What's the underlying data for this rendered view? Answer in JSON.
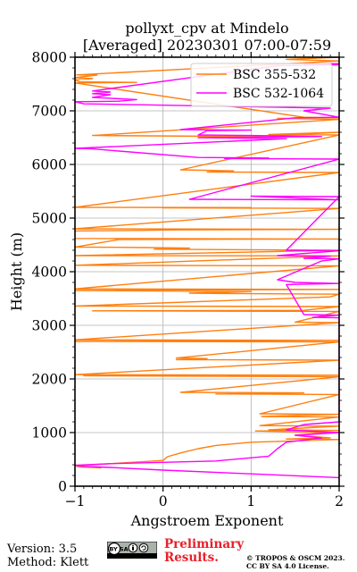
{
  "chart_data": {
    "type": "line",
    "title_line1": "pollyxt_cpv at Mindelo",
    "title_line2": "[Averaged] 20230301 07:00-07:59",
    "xlabel": "Angstroem Exponent",
    "ylabel": "Height (m)",
    "xlim": [
      -1,
      2
    ],
    "ylim": [
      0,
      8000
    ],
    "x_ticks": [
      -1,
      0,
      1,
      2
    ],
    "x_tick_labels": [
      "−1",
      "0",
      "1",
      "2"
    ],
    "y_ticks": [
      0,
      1000,
      2000,
      3000,
      4000,
      5000,
      6000,
      7000,
      8000
    ],
    "y_tick_labels": [
      "0",
      "1000",
      "2000",
      "3000",
      "4000",
      "5000",
      "6000",
      "7000",
      "8000"
    ],
    "grid": true,
    "legend_position": "top-right",
    "series": [
      {
        "name": "BSC 355-532",
        "color": "#ff7f0e",
        "points": [
          [
            2.0,
            8000
          ],
          [
            1.4,
            7960
          ],
          [
            2.0,
            7930
          ],
          [
            -0.98,
            7670
          ],
          [
            -0.75,
            7665
          ],
          [
            -1.0,
            7620
          ],
          [
            -0.8,
            7600
          ],
          [
            -1.0,
            7580
          ],
          [
            -0.95,
            7540
          ],
          [
            -0.3,
            7530
          ],
          [
            -1.0,
            7520
          ],
          [
            1.6,
            6880
          ],
          [
            2.0,
            6870
          ],
          [
            1.3,
            6860
          ],
          [
            2.0,
            6840
          ],
          [
            -0.6,
            6560
          ],
          [
            -0.8,
            6540
          ],
          [
            1.0,
            6520
          ],
          [
            2.0,
            6600
          ],
          [
            1.2,
            6560
          ],
          [
            2.0,
            6550
          ],
          [
            0.2,
            5900
          ],
          [
            0.8,
            5880
          ],
          [
            0.5,
            5860
          ],
          [
            2.0,
            5850
          ],
          [
            -1.0,
            5200
          ],
          [
            1.0,
            5195
          ],
          [
            0.0,
            5190
          ],
          [
            2.0,
            5180
          ],
          [
            -1.0,
            4800
          ],
          [
            2.0,
            4790
          ],
          [
            0.2,
            4780
          ],
          [
            -0.3,
            4770
          ],
          [
            -1.0,
            4760
          ],
          [
            -1.0,
            4620
          ],
          [
            2.0,
            4610
          ],
          [
            -0.5,
            4600
          ],
          [
            -1.0,
            4460
          ],
          [
            -0.2,
            4450
          ],
          [
            0.3,
            4440
          ],
          [
            -0.1,
            4420
          ],
          [
            2.0,
            4400
          ],
          [
            -1.0,
            4300
          ],
          [
            2.0,
            4295
          ],
          [
            -1.0,
            4120
          ],
          [
            2.0,
            4110
          ],
          [
            -1.0,
            3680
          ],
          [
            2.0,
            3670
          ],
          [
            -1.0,
            3650
          ],
          [
            1.0,
            3630
          ],
          [
            0.3,
            3600
          ],
          [
            1.0,
            3590
          ],
          [
            2.0,
            3580
          ],
          [
            1.9,
            3530
          ],
          [
            -1.0,
            3360
          ],
          [
            2.0,
            3350
          ],
          [
            1.6,
            3280
          ],
          [
            -0.8,
            3270
          ],
          [
            2.0,
            3260
          ],
          [
            1.5,
            3060
          ],
          [
            2.0,
            3050
          ],
          [
            -1.0,
            2730
          ],
          [
            2.0,
            2720
          ],
          [
            -1.0,
            2700
          ],
          [
            2.0,
            2690
          ],
          [
            0.15,
            2390
          ],
          [
            0.5,
            2380
          ],
          [
            0.15,
            2360
          ],
          [
            2.0,
            2350
          ],
          [
            -1.0,
            2080
          ],
          [
            2.0,
            2070
          ],
          [
            -0.9,
            2060
          ],
          [
            2.0,
            2040
          ],
          [
            0.2,
            1750
          ],
          [
            1.6,
            1740
          ],
          [
            0.6,
            1720
          ],
          [
            2.0,
            1710
          ],
          [
            1.1,
            1350
          ],
          [
            2.0,
            1340
          ],
          [
            1.12,
            1300
          ],
          [
            2.0,
            1290
          ],
          [
            1.1,
            1130
          ],
          [
            2.0,
            1120
          ],
          [
            1.2,
            1050
          ],
          [
            2.0,
            1040
          ],
          [
            1.05,
            1030
          ],
          [
            1.9,
            1000
          ],
          [
            1.5,
            950
          ],
          [
            1.9,
            900
          ],
          [
            1.4,
            880
          ],
          [
            2.0,
            870
          ],
          [
            1.0,
            820
          ],
          [
            0.6,
            760
          ],
          [
            0.4,
            700
          ],
          [
            0.2,
            620
          ],
          [
            0.05,
            550
          ],
          [
            0.0,
            480
          ],
          [
            -0.4,
            440
          ],
          [
            -0.8,
            400
          ],
          [
            -1.0,
            380
          ],
          [
            -0.95,
            360
          ],
          [
            -0.7,
            340
          ]
        ]
      },
      {
        "name": "BSC 532-1064",
        "color": "#ff00ff",
        "points": [
          [
            2.0,
            7880
          ],
          [
            1.6,
            7870
          ],
          [
            2.0,
            7860
          ],
          [
            1.3,
            7840
          ],
          [
            -0.8,
            7370
          ],
          [
            -0.6,
            7350
          ],
          [
            -0.8,
            7320
          ],
          [
            -0.6,
            7300
          ],
          [
            -0.8,
            7250
          ],
          [
            -0.3,
            7210
          ],
          [
            -0.5,
            7180
          ],
          [
            -1.0,
            7170
          ],
          [
            -0.9,
            7130
          ],
          [
            -0.5,
            7120
          ],
          [
            1.9,
            7050
          ],
          [
            1.6,
            7000
          ],
          [
            2.0,
            6880
          ],
          [
            1.5,
            6870
          ],
          [
            0.2,
            6650
          ],
          [
            1.0,
            6640
          ],
          [
            0.5,
            6630
          ],
          [
            0.4,
            6550
          ],
          [
            1.0,
            6540
          ],
          [
            1.8,
            6520
          ],
          [
            0.4,
            6500
          ],
          [
            1.4,
            6480
          ],
          [
            -1.0,
            6300
          ],
          [
            -0.8,
            6290
          ],
          [
            0.4,
            6130
          ],
          [
            1.2,
            6120
          ],
          [
            0.7,
            6110
          ],
          [
            2.0,
            6100
          ],
          [
            0.3,
            5350
          ],
          [
            2.0,
            5340
          ],
          [
            1.0,
            5410
          ],
          [
            2.0,
            5400
          ],
          [
            1.4,
            4400
          ],
          [
            2.0,
            4390
          ],
          [
            1.3,
            4300
          ],
          [
            1.9,
            4290
          ],
          [
            1.6,
            4250
          ],
          [
            2.0,
            4240
          ],
          [
            1.8,
            4200
          ],
          [
            1.3,
            3850
          ],
          [
            1.5,
            3800
          ],
          [
            2.0,
            3780
          ],
          [
            1.4,
            3760
          ],
          [
            1.6,
            3200
          ],
          [
            2.0,
            3190
          ],
          [
            1.7,
            3150
          ],
          [
            2.0,
            3140
          ],
          [
            2.0,
            1200
          ],
          [
            1.6,
            1150
          ],
          [
            1.4,
            1050
          ],
          [
            2.0,
            1000
          ],
          [
            1.5,
            950
          ],
          [
            1.8,
            900
          ],
          [
            1.4,
            820
          ],
          [
            1.3,
            700
          ],
          [
            1.2,
            560
          ],
          [
            0.6,
            470
          ],
          [
            -0.6,
            420
          ],
          [
            -1.0,
            390
          ],
          [
            -0.9,
            370
          ],
          [
            -0.6,
            350
          ],
          [
            0.0,
            300
          ],
          [
            1.0,
            230
          ],
          [
            2.0,
            160
          ]
        ]
      }
    ]
  },
  "footer": {
    "version": "Version: 3.5",
    "method": "Method: Klett",
    "cc_badge": "cc BY SA",
    "preliminary_line1": "Preliminary",
    "preliminary_line2": "Results.",
    "copyright_line1": "© TROPOS & OSCM 2023.",
    "copyright_line2": "CC BY SA 4.0 License."
  }
}
